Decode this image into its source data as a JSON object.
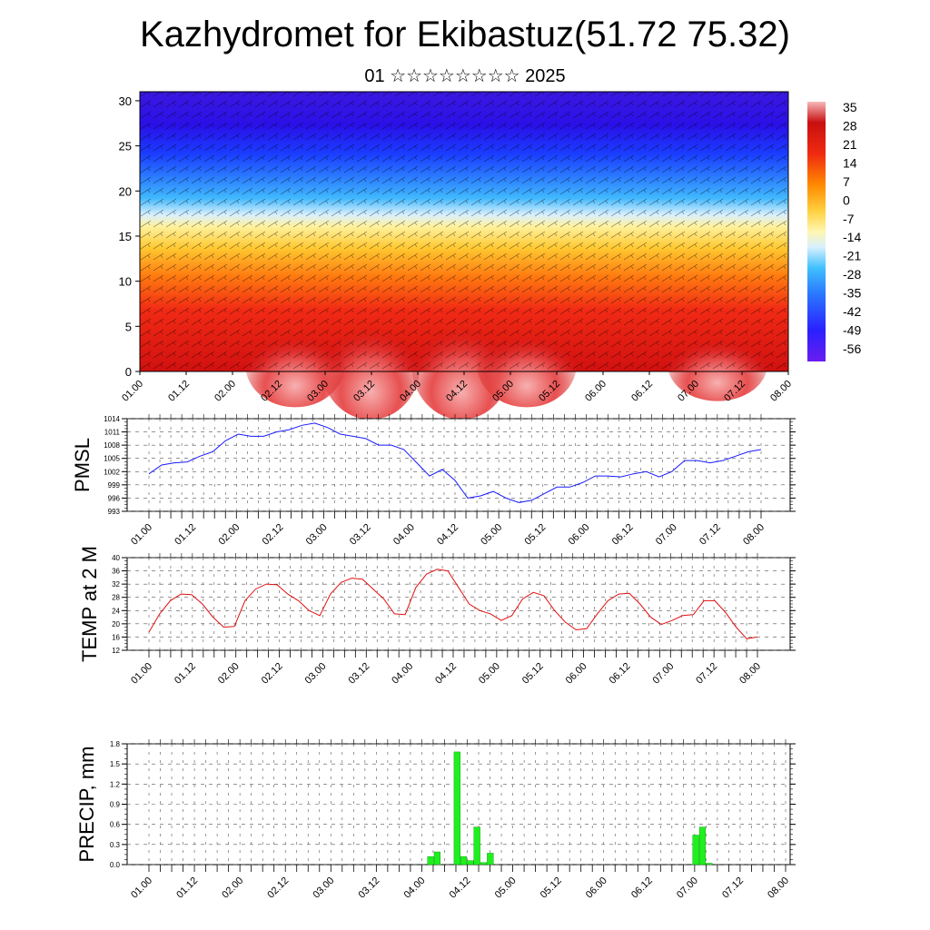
{
  "header": {
    "title": "Kazhydromet for Ekibastuz(51.72 75.32)",
    "subtitle": "01 ☆☆☆☆☆☆☆☆ 2025"
  },
  "chart_data": [
    {
      "type": "heatmap",
      "title": "",
      "xlabel": "",
      "ylabel": "",
      "x_ticks": [
        "01.00",
        "01.12",
        "02.00",
        "02.12",
        "03.00",
        "03.12",
        "04.00",
        "04.12",
        "05.00",
        "05.12",
        "06.00",
        "06.12",
        "07.00",
        "07.12",
        "08.00"
      ],
      "ylim": [
        0,
        31
      ],
      "y_ticks": [
        0,
        5,
        10,
        15,
        20,
        25,
        30
      ],
      "colorbar_labels": [
        35,
        28,
        21,
        14,
        7,
        0,
        -7,
        -14,
        -21,
        -28,
        -35,
        -42,
        -49,
        -56
      ],
      "overlay": "wind barbs",
      "colors": {
        "cold": "#5c00e0",
        "cool": "#2a8cff",
        "mild": "#ffe57a",
        "warm": "#ff8a00",
        "hot": "#e01010",
        "hottest": "#f7b0b0"
      }
    },
    {
      "type": "line",
      "ylabel": "PMSL",
      "ylim": [
        993,
        1014
      ],
      "y_ticks": [
        993,
        996,
        999,
        1002,
        1005,
        1008,
        1011,
        1014
      ],
      "x_ticks": [
        "01.00",
        "01.12",
        "02.00",
        "02.12",
        "03.00",
        "03.12",
        "04.00",
        "04.12",
        "05.00",
        "05.12",
        "06.00",
        "06.12",
        "07.00",
        "07.12",
        "08.00"
      ],
      "series": [
        {
          "color": "#1a1aff",
          "values": [
            1001.5,
            1003.5,
            1004,
            1004.2,
            1005.5,
            1006.5,
            1009,
            1010.5,
            1010,
            1010,
            1011,
            1011.5,
            1012.5,
            1013,
            1012,
            1010.5,
            1010,
            1009.5,
            1008,
            1008,
            1007,
            1004,
            1001,
            1002.5,
            1000,
            996,
            996.5,
            997.5,
            996,
            995,
            995.5,
            997,
            998.5,
            998.5,
            999.5,
            1001,
            1001,
            1000.8,
            1001.5,
            1002,
            1000.8,
            1002,
            1004.5,
            1004.5,
            1004,
            1004.5,
            1005.5,
            1006.5,
            1007
          ]
        }
      ]
    },
    {
      "type": "line",
      "ylabel": "TEMP at 2 M",
      "ylim": [
        12,
        40
      ],
      "y_ticks": [
        12,
        16,
        20,
        24,
        28,
        32,
        36,
        40
      ],
      "x_ticks": [
        "01.00",
        "01.12",
        "02.00",
        "02.12",
        "03.00",
        "03.12",
        "04.00",
        "04.12",
        "05.00",
        "05.12",
        "06.00",
        "06.12",
        "07.00",
        "07.12",
        "08.00"
      ],
      "series": [
        {
          "color": "#e01010",
          "values": [
            17.5,
            23,
            27,
            29,
            28.8,
            26,
            22,
            19,
            19.2,
            27,
            30.5,
            32,
            31.8,
            29,
            27,
            24,
            22.5,
            29,
            32.5,
            33.8,
            33.5,
            30.5,
            27.5,
            23,
            22.8,
            31,
            35,
            36.5,
            36,
            31,
            26,
            24,
            23,
            21,
            22.5,
            27.5,
            29.5,
            28.5,
            24,
            20.5,
            18.2,
            18.5,
            23,
            27,
            29,
            29.2,
            26,
            22,
            19.8,
            21,
            22.5,
            22.8,
            27,
            27,
            23.5,
            19,
            15.5,
            16
          ]
        }
      ]
    },
    {
      "type": "bar",
      "ylabel": "PRECIP, mm",
      "ylim": [
        0,
        1.8
      ],
      "y_ticks": [
        "0.0",
        "0.3",
        "0.6",
        "0.9",
        "1.2",
        "1.5",
        "1.8"
      ],
      "x_ticks": [
        "01.00",
        "01.12",
        "02.00",
        "02.12",
        "03.00",
        "03.12",
        "04.00",
        "04.12",
        "05.00",
        "05.12",
        "06.00",
        "06.12",
        "07.00",
        "07.12",
        "08.00"
      ],
      "bar_color": "#1ef01e",
      "values": [
        0,
        0,
        0,
        0,
        0,
        0,
        0,
        0,
        0,
        0,
        0,
        0,
        0,
        0,
        0,
        0,
        0,
        0,
        0,
        0,
        0,
        0,
        0,
        0,
        0,
        0,
        0,
        0,
        0,
        0,
        0,
        0,
        0,
        0,
        0,
        0,
        0,
        0,
        0,
        0,
        0,
        0,
        0.12,
        0.19,
        0,
        0,
        1.68,
        0.12,
        0.06,
        0.56,
        0.03,
        0.17,
        0,
        0,
        0,
        0,
        0,
        0,
        0,
        0,
        0,
        0,
        0,
        0,
        0,
        0,
        0,
        0,
        0,
        0,
        0,
        0,
        0,
        0,
        0,
        0,
        0,
        0,
        0,
        0,
        0,
        0,
        0.44,
        0.56,
        0.02,
        0,
        0,
        0,
        0,
        0,
        0,
        0,
        0,
        0,
        0,
        0
      ]
    }
  ]
}
